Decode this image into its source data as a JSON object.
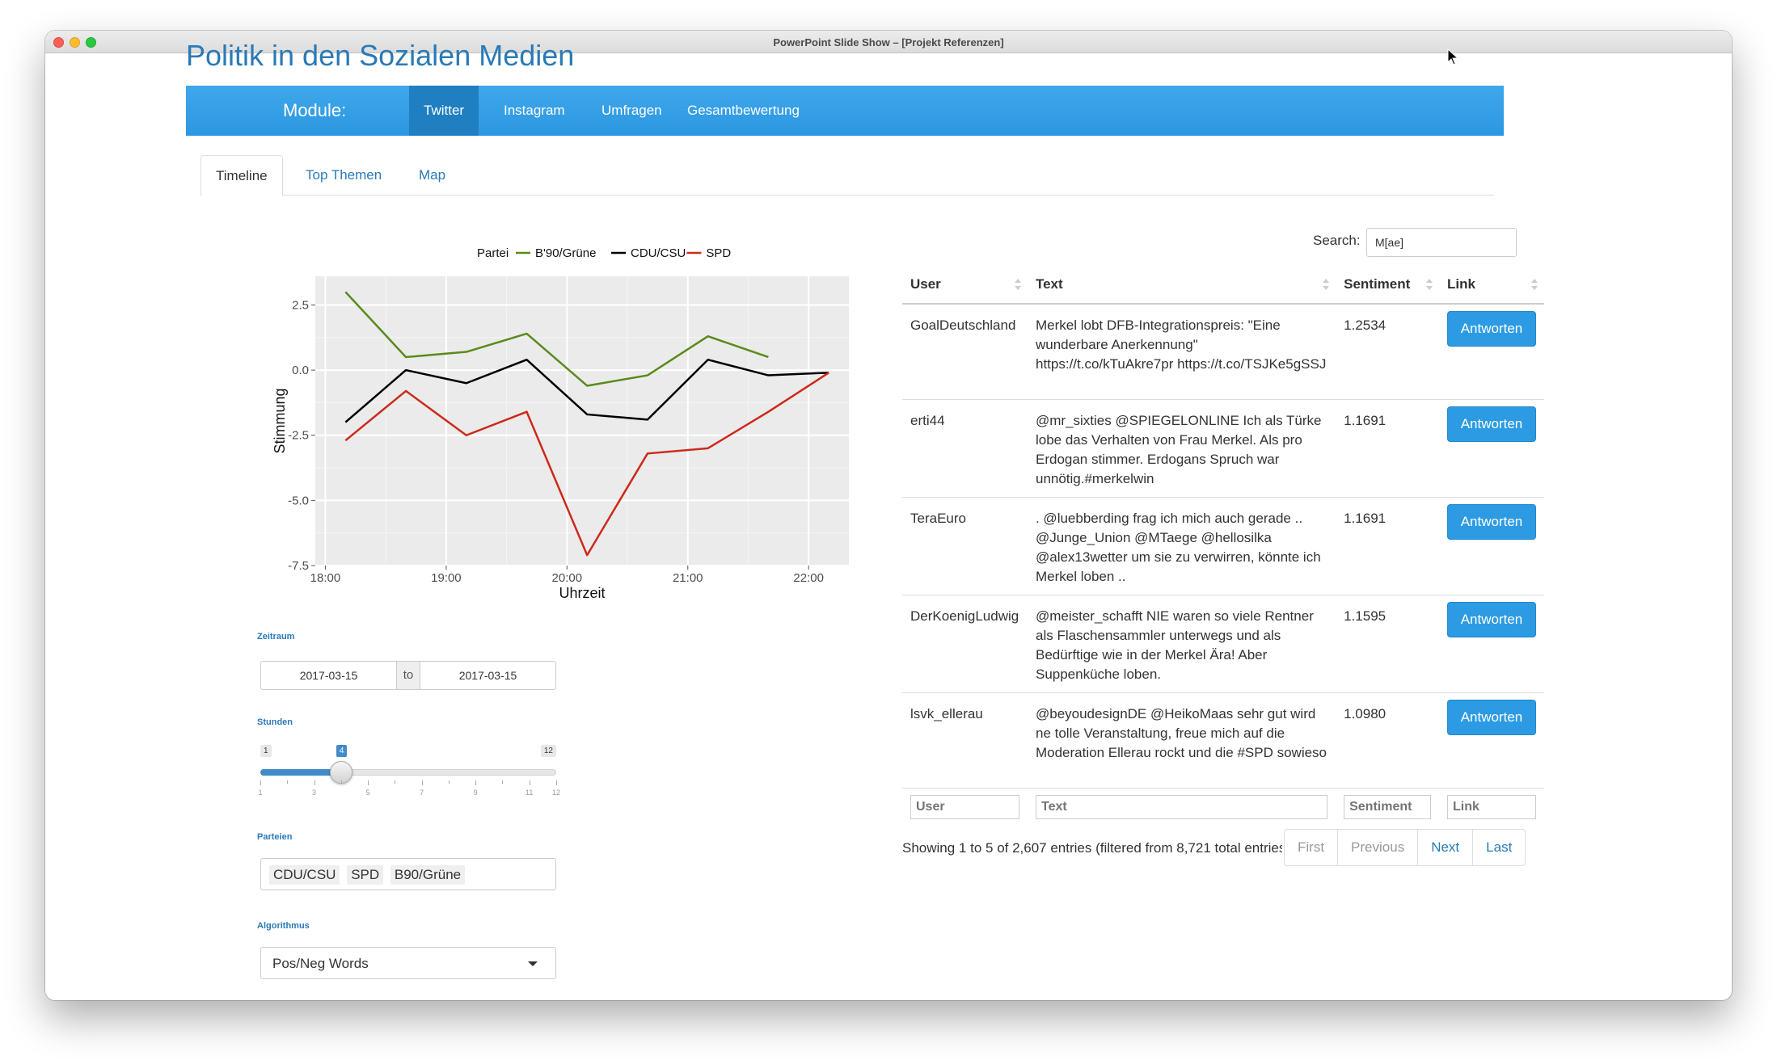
{
  "window": {
    "title": "PowerPoint Slide Show – [Projekt Referenzen]"
  },
  "app": {
    "title": "Politik in den Sozialen Medien"
  },
  "navbar": {
    "brand": "Module:",
    "items": [
      {
        "label": "Twitter",
        "active": true
      },
      {
        "label": "Instagram"
      },
      {
        "label": "Umfragen"
      },
      {
        "label": "Gesamtbewertung"
      }
    ]
  },
  "tabs": [
    {
      "label": "Timeline",
      "active": true
    },
    {
      "label": "Top Themen"
    },
    {
      "label": "Map"
    }
  ],
  "chart_data": {
    "type": "line",
    "legend_title": "Partei",
    "legend_position": "top",
    "xlabel": "Uhrzeit",
    "ylabel": "Stimmung",
    "x_ticks": [
      "18:00",
      "19:00",
      "20:00",
      "21:00",
      "22:00"
    ],
    "y_ticks": [
      "2.5",
      "0.0",
      "-2.5",
      "-5.0",
      "-7.5"
    ],
    "xlim": [
      "17:55",
      "22:20"
    ],
    "ylim": [
      -7.5,
      3.6
    ],
    "grid": true,
    "series": [
      {
        "name": "B'90/Grüne",
        "color": "#5a8a1a",
        "x": [
          "18:10",
          "18:40",
          "19:10",
          "19:40",
          "20:10",
          "20:40",
          "21:10",
          "21:40"
        ],
        "y": [
          3.0,
          0.5,
          0.7,
          1.4,
          -0.6,
          -0.2,
          1.3,
          0.5
        ]
      },
      {
        "name": "CDU/CSU",
        "color": "#000000",
        "x": [
          "18:10",
          "18:40",
          "19:10",
          "19:40",
          "20:10",
          "20:40",
          "21:10",
          "21:40",
          "22:10"
        ],
        "y": [
          -2.0,
          0.0,
          -0.5,
          0.4,
          -1.7,
          -1.9,
          0.4,
          -0.2,
          -0.1
        ]
      },
      {
        "name": "SPD",
        "color": "#cc2a1a",
        "x": [
          "18:10",
          "18:40",
          "19:10",
          "19:40",
          "20:10",
          "20:40",
          "21:10",
          "21:40",
          "22:10"
        ],
        "y": [
          -2.7,
          -0.8,
          -2.5,
          -1.6,
          -7.1,
          -3.2,
          -3.0,
          -1.6,
          -0.1
        ]
      }
    ]
  },
  "controls": {
    "zeitraum_label": "Zeitraum",
    "date_from": "2017-03-15",
    "date_sep": "to",
    "date_to": "2017-03-15",
    "stunden_label": "Stunden",
    "slider": {
      "min": 1,
      "max": 12,
      "value": 4,
      "min_label": "1",
      "max_label": "12",
      "value_label": "4",
      "tick_labels": [
        "1",
        "3",
        "5",
        "7",
        "9",
        "11",
        "12"
      ]
    },
    "parteien_label": "Parteien",
    "parteien": [
      "CDU/CSU",
      "SPD",
      "B90/Grüne"
    ],
    "algorithmus_label": "Algorithmus",
    "algorithmus_value": "Pos/Neg Words"
  },
  "search": {
    "label": "Search:",
    "value": "M[ae]"
  },
  "table": {
    "headers": [
      "User",
      "Text",
      "Sentiment",
      "Link"
    ],
    "button_label": "Antworten",
    "rows": [
      {
        "user": "GoalDeutschland",
        "text": "Merkel lobt DFB-Integrationspreis: \"Eine wunderbare Anerkennung\" https://t.co/kTuAkre7pr https://t.co/TSJKe5gSSJ",
        "sentiment": "1.2534"
      },
      {
        "user": "erti44",
        "text": "@mr_sixties @SPIEGELONLINE Ich als Türke lobe das Verhalten von Frau Merkel. Als pro Erdogan stimmer. Erdogans Spruch war unnötig.#merkelwin",
        "sentiment": "1.1691"
      },
      {
        "user": "TeraEuro",
        "text": ". @luebberding frag ich mich auch gerade .. @Junge_Union @MTaege @hellosilka @alex13wetter um sie zu verwirren, könnte ich Merkel loben ..",
        "sentiment": "1.1691"
      },
      {
        "user": "DerKoenigLudwig",
        "text": "@meister_schafft NIE waren so viele Rentner als Flaschensammler unterwegs und als Bedürftige wie in der Merkel Ära! Aber Suppenküche loben.",
        "sentiment": "1.1595"
      },
      {
        "user": "lsvk_ellerau",
        "text": "@beyoudesignDE @HeikoMaas sehr gut wird ne tolle Veranstaltung, freue mich auf die Moderation Ellerau rockt und die #SPD sowieso",
        "sentiment": "1.0980"
      }
    ],
    "filter_placeholders": [
      "User",
      "Text",
      "Sentiment",
      "Link"
    ]
  },
  "pagination": {
    "info": "Showing 1 to 5 of 2,607 entries (filtered from 8,721 total entries)",
    "first": "First",
    "previous": "Previous",
    "next": "Next",
    "last": "Last"
  }
}
